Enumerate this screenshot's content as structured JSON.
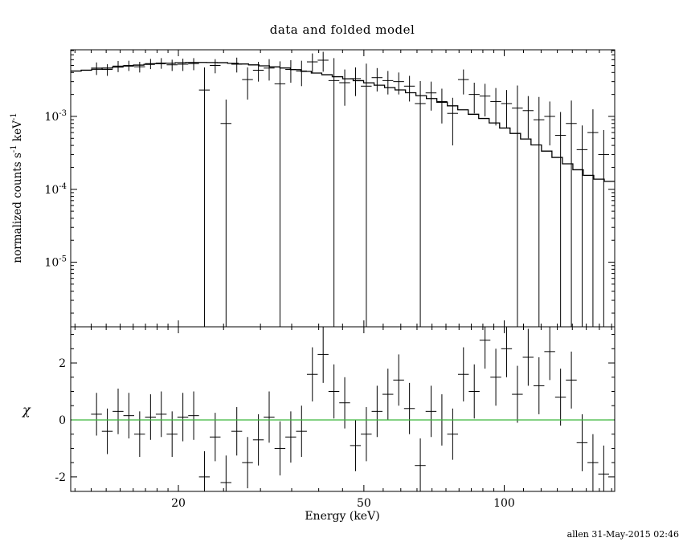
{
  "page": {
    "title": "data and folded model",
    "x_axis_label": "Energy (keV)",
    "y_axis_label_top": {
      "text": "normalized counts s",
      "sup1": "-1",
      "text2": " keV",
      "sup2": "-1"
    },
    "y_axis_label_bottom": "χ",
    "footer_credit": "allen 31-May-2015 02:46"
  },
  "colors": {
    "axis": "#000000",
    "data": "#000000",
    "model": "#000000",
    "zero_line": "#3cb83c",
    "background": "#ffffff",
    "text": "#000000"
  },
  "chart_data": [
    {
      "type": "scatter",
      "panel": "top",
      "title": "data and folded model",
      "xlabel": "Energy (keV)",
      "ylabel": "normalized counts s^-1 keV^-1",
      "xscale": "log",
      "yscale": "log",
      "xlim": [
        11.75,
        172.6
      ],
      "ylim": [
        1.3e-06,
        0.0082
      ],
      "grid": false,
      "x_major_ticks": [
        20,
        50,
        100
      ],
      "x_minor_ticks": [
        12,
        13,
        14,
        15,
        16,
        17,
        18,
        19,
        25,
        30,
        35,
        40,
        45,
        55,
        60,
        65,
        70,
        75,
        80,
        85,
        90,
        95,
        110,
        120,
        130,
        140,
        150,
        160,
        170
      ],
      "y_major_tick_exponents": [
        -3,
        -4,
        -5
      ],
      "series": [
        {
          "name": "data",
          "style": "cross-errorbar",
          "xerr_frac": 0.0267,
          "x": [
            13.35,
            14.08,
            14.85,
            15.66,
            16.52,
            17.43,
            18.38,
            19.39,
            20.45,
            21.57,
            22.75,
            23.99,
            25.31,
            26.69,
            28.15,
            29.7,
            31.32,
            33.04,
            34.85,
            36.75,
            38.77,
            40.89,
            43.13,
            45.49,
            47.98,
            50.61,
            53.38,
            56.31,
            59.39,
            62.64,
            66.07,
            69.69,
            73.5,
            77.53,
            81.77,
            86.25,
            90.97,
            95.95,
            101.21,
            106.75,
            112.59,
            118.75,
            125.25,
            132.11,
            139.34,
            146.97,
            155.01,
            163.5
          ],
          "y": [
            0.0046,
            0.0044,
            0.0049,
            0.005,
            0.0048,
            0.0053,
            0.0054,
            0.0051,
            0.0052,
            0.0053,
            0.0023,
            0.005,
            0.0008,
            0.0052,
            0.0032,
            0.0043,
            0.0046,
            0.0028,
            0.0044,
            0.0042,
            0.0056,
            0.0059,
            0.0031,
            0.0029,
            0.0033,
            0.0026,
            0.0034,
            0.0031,
            0.003,
            0.0026,
            0.0015,
            0.0021,
            0.0016,
            0.0011,
            0.0032,
            0.002,
            0.0019,
            0.0016,
            0.0015,
            0.0013,
            0.0012,
            0.0009,
            0.001,
            0.00055,
            0.0008,
            0.00035,
            0.0006,
            0.0003
          ],
          "yerr": [
            0.0009,
            0.0008,
            0.00085,
            0.0008,
            0.0008,
            0.00085,
            0.0009,
            0.0009,
            0.001,
            0.001,
            0.0024,
            0.0011,
            0.0009,
            0.0012,
            0.0015,
            0.0013,
            0.0015,
            0.0029,
            0.0015,
            0.0016,
            0.0017,
            0.0018,
            0.0032,
            0.0015,
            0.0014,
            0.0027,
            0.0012,
            0.0011,
            0.001,
            0.001,
            0.00155,
            0.0009,
            0.0008,
            0.0007,
            0.0012,
            0.0009,
            0.0009,
            0.00085,
            0.0008,
            0.00135,
            0.0007,
            0.00095,
            0.0006,
            0.0006,
            0.00085,
            0.0004,
            0.00065,
            0.00035
          ]
        },
        {
          "name": "folded model",
          "style": "step-line",
          "x": [
            11.5,
            13,
            15,
            17,
            19,
            21,
            23,
            25,
            28,
            31,
            34,
            38,
            42,
            46,
            50,
            55,
            60,
            65,
            70,
            75,
            80,
            85,
            90,
            95,
            100,
            107,
            114,
            121,
            128,
            135,
            142,
            150,
            158,
            166,
            174
          ],
          "y": [
            0.0041,
            0.00435,
            0.0048,
            0.00515,
            0.00535,
            0.0055,
            0.0055,
            0.00545,
            0.0052,
            0.0049,
            0.0046,
            0.0041,
            0.0037,
            0.0033,
            0.003,
            0.0026,
            0.0023,
            0.002,
            0.00175,
            0.0015,
            0.0013,
            0.0011,
            0.00095,
            0.00082,
            0.0007,
            0.00056,
            0.00045,
            0.00036,
            0.00029,
            0.000235,
            0.000195,
            0.00016,
            0.00014,
            0.00013,
            0.000125
          ]
        }
      ]
    },
    {
      "type": "scatter",
      "panel": "bottom",
      "ylabel": "χ",
      "xscale": "log",
      "yscale": "linear",
      "xlim": [
        11.75,
        172.6
      ],
      "ylim": [
        -2.51,
        3.27
      ],
      "grid": false,
      "y_major_ticks": [
        -2,
        0,
        2
      ],
      "y_minor_ticks": [
        -2.5,
        -1.5,
        -1,
        -0.5,
        0.5,
        1,
        1.5,
        2.5,
        3
      ],
      "series": [
        {
          "name": "residuals",
          "style": "cross-errorbar",
          "xerr_frac": 0.0267,
          "x": [
            13.35,
            14.08,
            14.85,
            15.66,
            16.52,
            17.43,
            18.38,
            19.39,
            20.45,
            21.57,
            22.75,
            23.99,
            25.31,
            26.69,
            28.15,
            29.7,
            31.32,
            33.04,
            34.85,
            36.75,
            38.77,
            40.89,
            43.13,
            45.49,
            47.98,
            50.61,
            53.38,
            56.31,
            59.39,
            62.64,
            66.07,
            69.69,
            73.5,
            77.53,
            81.77,
            86.25,
            90.97,
            95.95,
            101.21,
            106.75,
            112.59,
            118.75,
            125.25,
            132.11,
            139.34,
            146.97,
            155.01,
            163.5
          ],
          "y": [
            0.2,
            -0.4,
            0.3,
            0.15,
            -0.5,
            0.1,
            0.2,
            -0.5,
            0.1,
            0.15,
            -2.0,
            -0.6,
            -2.2,
            -0.4,
            -1.5,
            -0.7,
            0.1,
            -1.0,
            -0.6,
            -0.4,
            1.6,
            2.3,
            1.0,
            0.6,
            -0.9,
            -0.5,
            0.3,
            0.9,
            1.4,
            0.4,
            -1.6,
            0.3,
            0.0,
            -0.5,
            1.6,
            1.0,
            2.8,
            1.5,
            2.5,
            0.9,
            2.2,
            1.2,
            2.4,
            0.8,
            1.4,
            -0.8,
            -1.5,
            -1.9
          ],
          "yerr": [
            0.75,
            0.8,
            0.8,
            0.8,
            0.8,
            0.8,
            0.8,
            0.8,
            0.85,
            0.85,
            0.9,
            0.85,
            0.95,
            0.85,
            0.9,
            0.9,
            0.9,
            0.95,
            0.9,
            0.9,
            0.95,
            1.0,
            0.95,
            0.9,
            0.9,
            0.95,
            0.9,
            0.9,
            0.9,
            0.9,
            0.95,
            0.9,
            0.9,
            0.9,
            0.95,
            0.95,
            1.0,
            1.0,
            1.0,
            1.0,
            1.0,
            1.0,
            1.0,
            1.0,
            1.0,
            1.0,
            1.0,
            1.0
          ]
        },
        {
          "name": "zero line",
          "style": "hline",
          "y": 0,
          "color": "#3cb83c"
        }
      ]
    }
  ]
}
